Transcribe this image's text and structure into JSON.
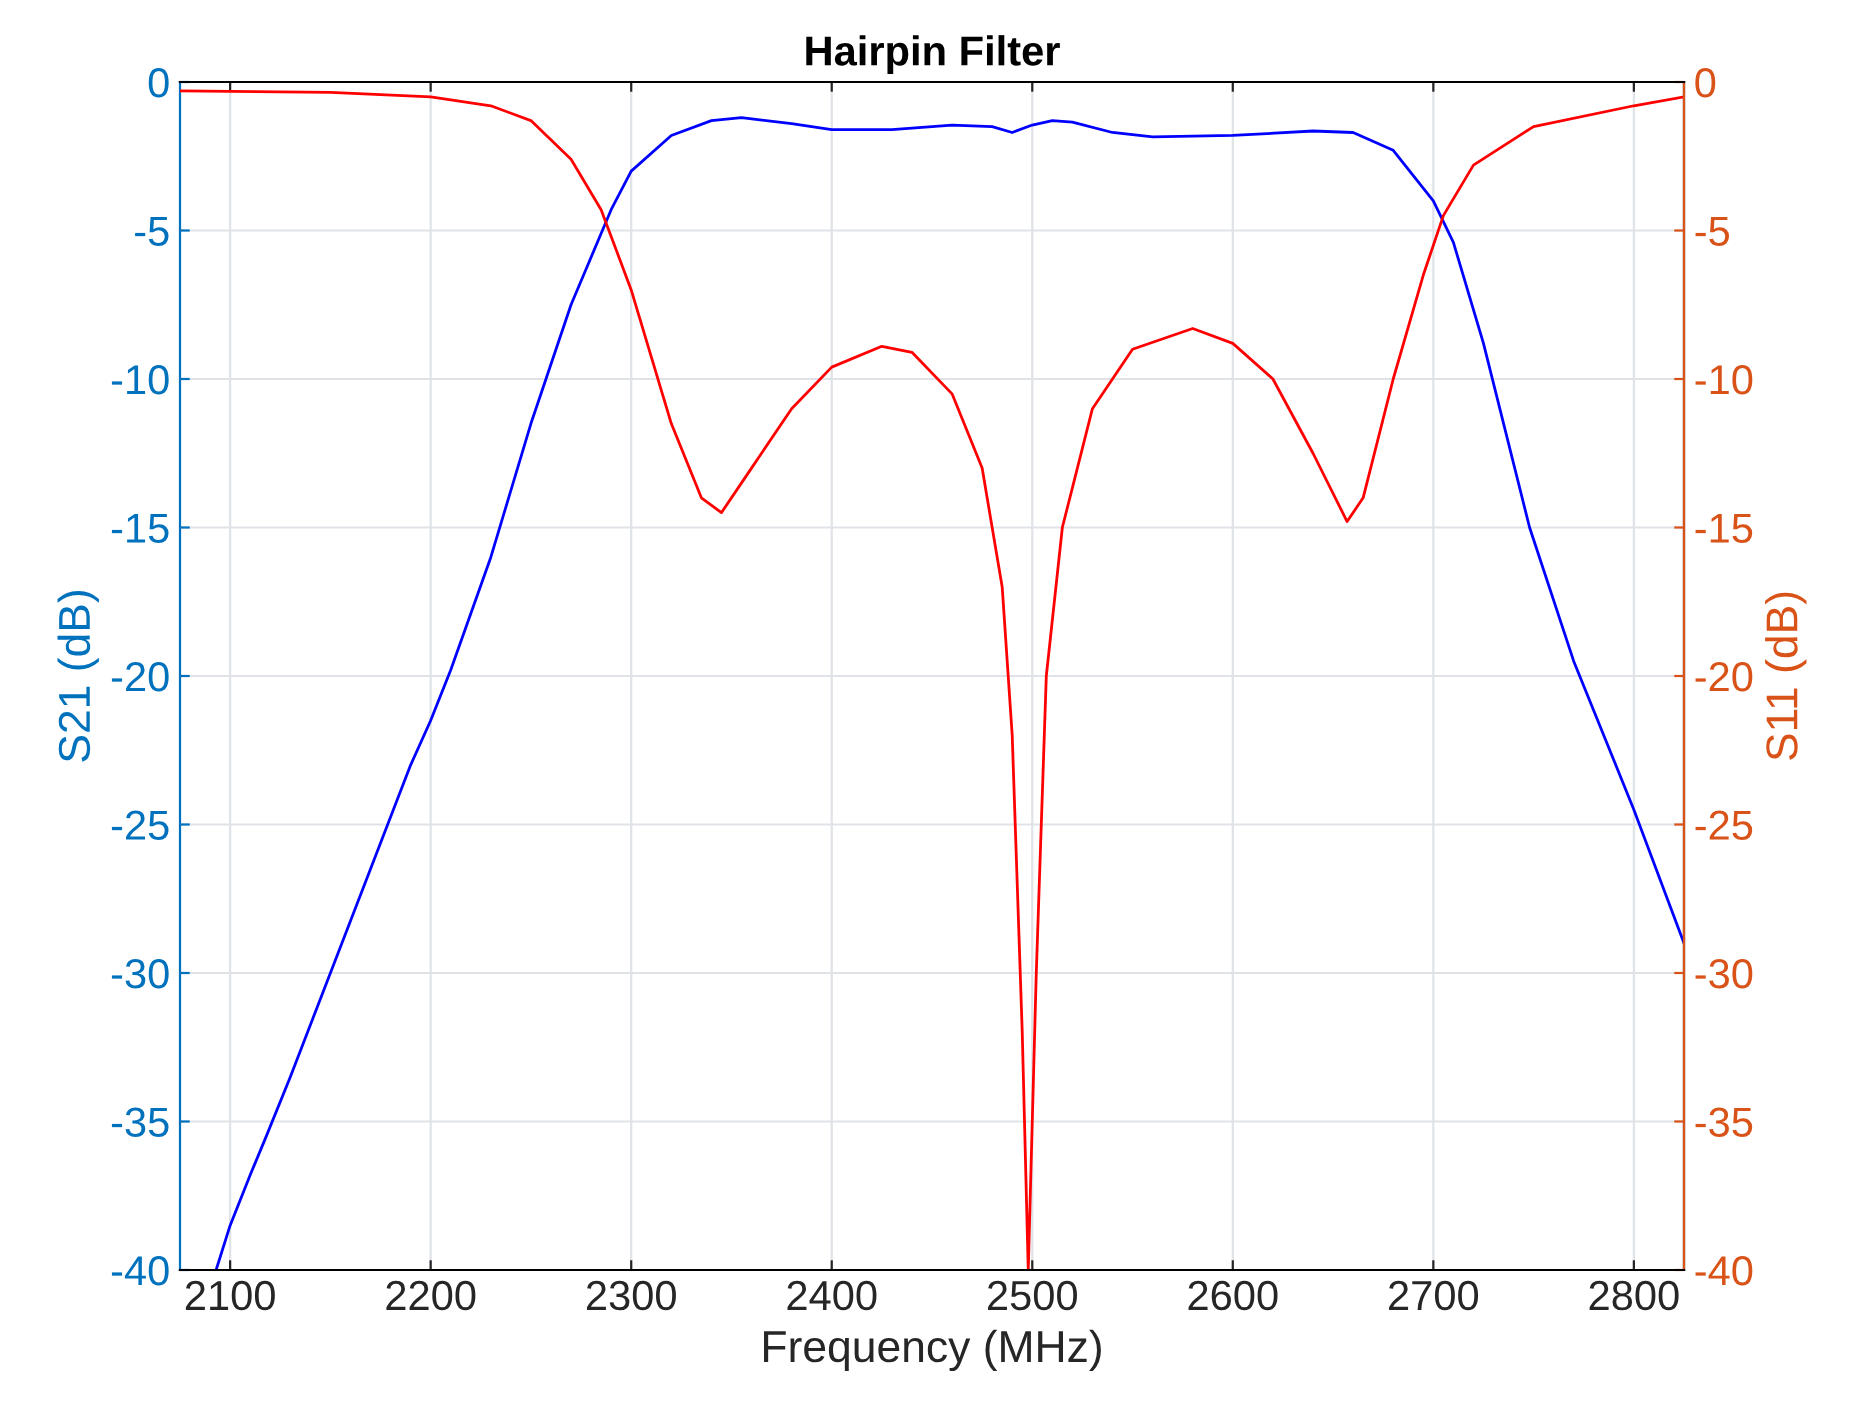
{
  "chart_data": {
    "type": "line",
    "title": "Hairpin Filter",
    "xlabel": "Frequency (MHz)",
    "ylabel": "S21 (dB)",
    "y2label": "S11 (dB)",
    "xlim": [
      2075,
      2825
    ],
    "xticks": [
      2100,
      2200,
      2300,
      2400,
      2500,
      2600,
      2700,
      2800
    ],
    "ylim": [
      -40,
      0
    ],
    "yticks": [
      -40,
      -35,
      -30,
      -25,
      -20,
      -15,
      -10,
      -5,
      0
    ],
    "y2lim": [
      -40,
      0
    ],
    "y2ticks": [
      -40,
      -35,
      -30,
      -25,
      -20,
      -15,
      -10,
      -5,
      0
    ],
    "grid": true,
    "marker": "none",
    "line_style": "solid",
    "series": [
      {
        "color": "#0000ff",
        "axis": "y",
        "x": [
          2093,
          2100,
          2110,
          2118,
          2130,
          2150,
          2170,
          2190,
          2200,
          2210,
          2230,
          2250,
          2270,
          2290,
          2300,
          2320,
          2340,
          2355,
          2380,
          2400,
          2430,
          2460,
          2480,
          2490,
          2500,
          2510,
          2520,
          2540,
          2560,
          2600,
          2640,
          2660,
          2680,
          2700,
          2710,
          2725,
          2748,
          2770,
          2800,
          2825
        ],
        "values": [
          -40,
          -38.5,
          -36.8,
          -35.5,
          -33.5,
          -30,
          -26.5,
          -23,
          -21.5,
          -19.8,
          -16,
          -11.5,
          -7.5,
          -4.3,
          -3,
          -1.8,
          -1.3,
          -1.2,
          -1.4,
          -1.6,
          -1.6,
          -1.45,
          -1.5,
          -1.7,
          -1.45,
          -1.3,
          -1.35,
          -1.7,
          -1.85,
          -1.8,
          -1.65,
          -1.7,
          -2.3,
          -4,
          -5.4,
          -8.8,
          -15,
          -19.5,
          -24.5,
          -29
        ]
      },
      {
        "color": "#ff0000",
        "axis": "y2",
        "x": [
          2075,
          2150,
          2200,
          2230,
          2250,
          2270,
          2285,
          2300,
          2320,
          2335,
          2345,
          2360,
          2380,
          2400,
          2425,
          2440,
          2460,
          2475,
          2485,
          2490,
          2495,
          2498,
          2502,
          2507,
          2515,
          2530,
          2550,
          2580,
          2600,
          2620,
          2640,
          2657,
          2665,
          2680,
          2695,
          2705,
          2720,
          2750,
          2800,
          2825
        ],
        "values": [
          -0.3,
          -0.35,
          -0.5,
          -0.8,
          -1.3,
          -2.6,
          -4.3,
          -7,
          -11.5,
          -14,
          -14.5,
          -13,
          -11,
          -9.6,
          -8.9,
          -9.1,
          -10.5,
          -13,
          -17,
          -22,
          -32,
          -40,
          -30,
          -20,
          -15,
          -11,
          -9,
          -8.3,
          -8.8,
          -10,
          -12.5,
          -14.8,
          -14,
          -10,
          -6.5,
          -4.5,
          -2.8,
          -1.5,
          -0.8,
          -0.5
        ]
      }
    ]
  }
}
